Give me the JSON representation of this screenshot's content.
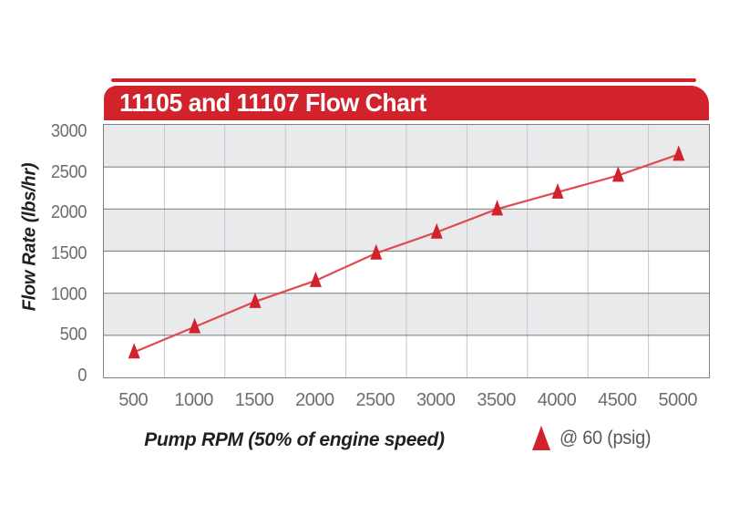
{
  "banner": {
    "title": "11105 and 11107 Flow Chart"
  },
  "chart_data": {
    "type": "line",
    "title": "11105 and 11107 Flow Chart",
    "xlabel": "Pump RPM (50% of engine speed)",
    "ylabel": "Flow Rate (lbs/hr)",
    "x": [
      500,
      1000,
      1500,
      2000,
      2500,
      3000,
      3500,
      4000,
      4500,
      5000
    ],
    "series": [
      {
        "name": "@ 60 (psig)",
        "marker": "triangle-up",
        "values": [
          300,
          600,
          900,
          1150,
          1475,
          1725,
          2000,
          2200,
          2400,
          2650
        ]
      }
    ],
    "xlim": [
      250,
      5250
    ],
    "ylim": [
      0,
      3000
    ],
    "xticks": [
      "500",
      "1000",
      "1500",
      "2000",
      "2500",
      "3000",
      "3500",
      "4000",
      "4500",
      "5000"
    ],
    "yticks": [
      "0",
      "500",
      "1000",
      "1500",
      "2000",
      "2500",
      "3000"
    ],
    "grid": "horizontal gridlines every 500, vertical separators between columns, alternating gray/white bands",
    "legend_position": "bottom-right"
  },
  "legend": {
    "label": "@ 60 (psig)"
  },
  "colors": {
    "accent_red": "#d2232c",
    "line_red": "#e04b50",
    "band_gray": "#e9eaec",
    "hgrid_gray": "#85878a",
    "vgrid_gray": "#c6c7c9",
    "plot_border": "#7e8083",
    "tick_text": "#6d6e71",
    "axis_title_text": "#231f20",
    "legend_text": "#58595b"
  }
}
